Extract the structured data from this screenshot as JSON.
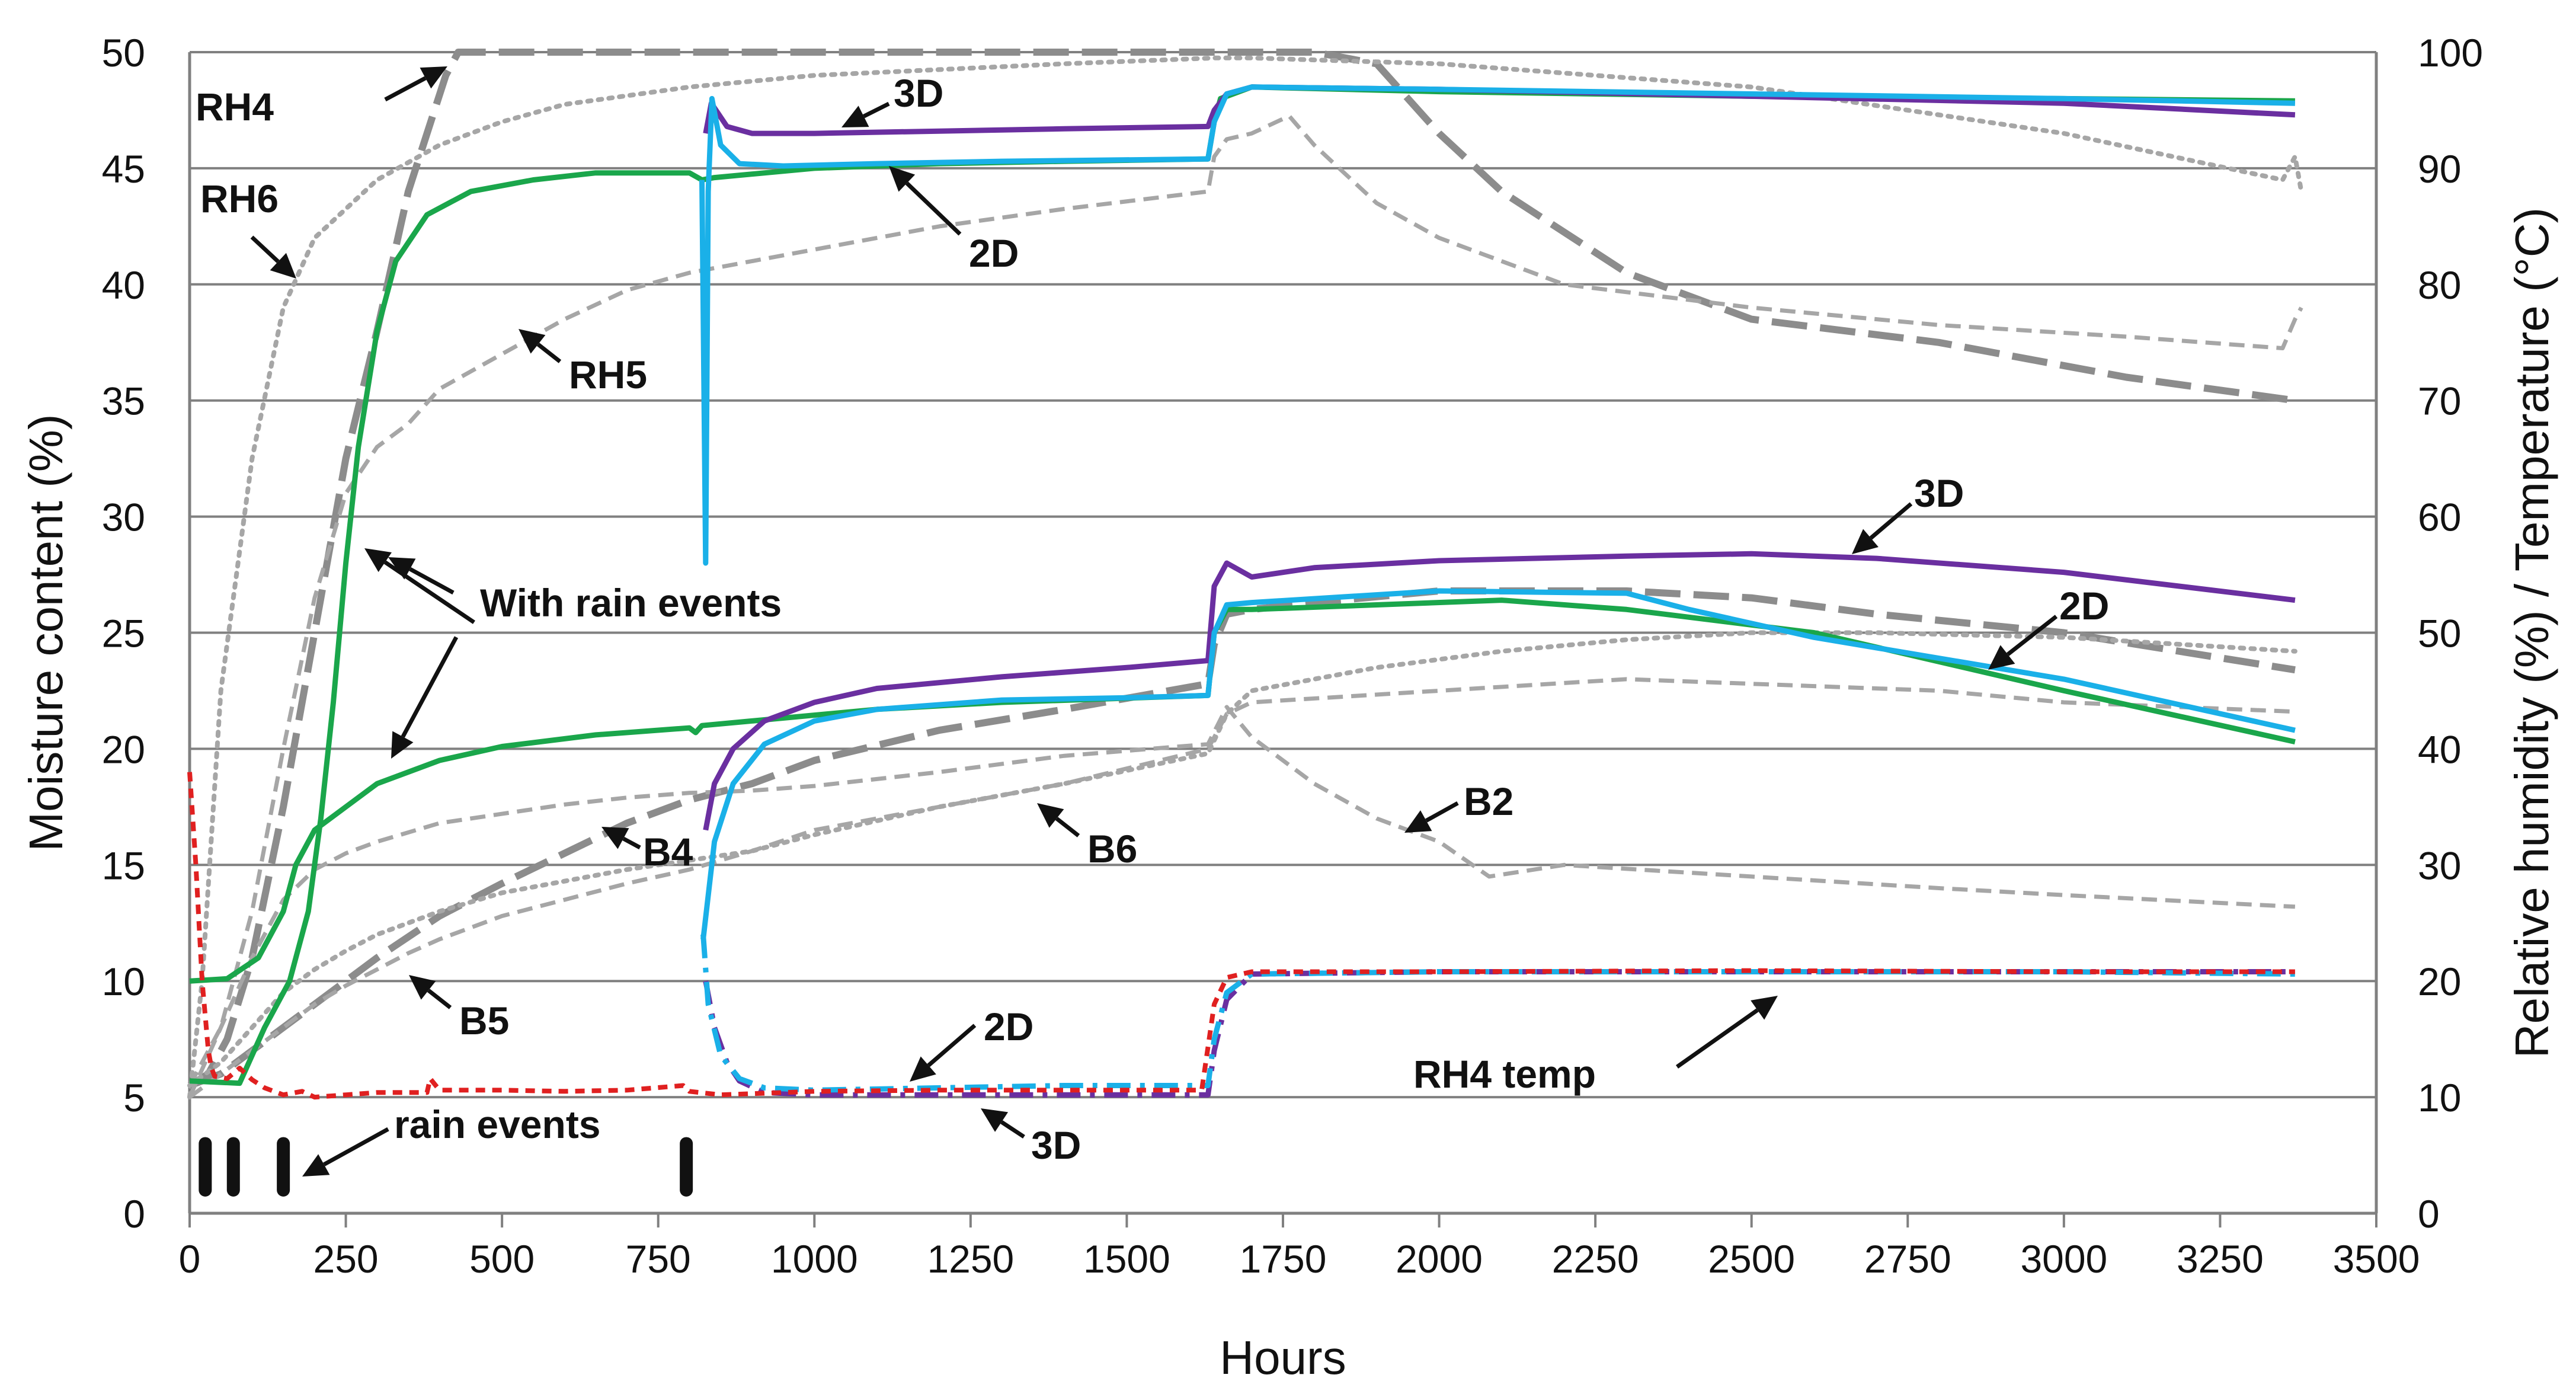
{
  "chart_data": {
    "type": "line",
    "title": "",
    "xlabel": "Hours",
    "ylabel": "Moisture content (%)",
    "y2label": "Relative humidity (%) / Temperature (°C)",
    "xlim": [
      0,
      3500
    ],
    "ylim": [
      0,
      50
    ],
    "y2lim": [
      0,
      100
    ],
    "grid": "horizontal",
    "x_ticks": [
      "0",
      "250",
      "500",
      "750",
      "1000",
      "1250",
      "1500",
      "1750",
      "2000",
      "2250",
      "2500",
      "2750",
      "3000",
      "3250",
      "3500"
    ],
    "y_ticks": [
      "0",
      "5",
      "10",
      "15",
      "20",
      "25",
      "30",
      "35",
      "40",
      "45",
      "50"
    ],
    "y2_ticks": [
      "0",
      "10",
      "20",
      "30",
      "40",
      "50",
      "60",
      "70",
      "80",
      "90",
      "100"
    ],
    "colors": {
      "green": "#1aa64b",
      "purple": "#6a2fa0",
      "blue": "#1ab0e8",
      "grey": "#a6a6a6",
      "dark_grey": "#8c8c8c",
      "red": "#e02020",
      "black": "#111111",
      "grid": "#808080"
    },
    "series": [
      {
        "name": "With rain events (upper)",
        "axis": "left",
        "style": "solid",
        "color": "green",
        "x": [
          0,
          80,
          120,
          160,
          190,
          210,
          230,
          250,
          270,
          300,
          330,
          380,
          450,
          550,
          650,
          800,
          820,
          840,
          1000,
          1200,
          1400,
          1630,
          1640,
          1650,
          1700,
          2000,
          2500,
          3000,
          3370
        ],
        "y": [
          5.7,
          5.6,
          8,
          10,
          13,
          17,
          22,
          28,
          33,
          38,
          41,
          43,
          44,
          44.5,
          44.8,
          44.8,
          44.5,
          44.6,
          45,
          45.2,
          45.3,
          45.4,
          47,
          48,
          48.5,
          48.3,
          48.1,
          48,
          47.9
        ]
      },
      {
        "name": "With rain events (lower)",
        "axis": "left",
        "style": "solid",
        "color": "green",
        "x": [
          0,
          60,
          110,
          150,
          170,
          200,
          250,
          300,
          400,
          500,
          650,
          800,
          810,
          820,
          900,
          1100,
          1300,
          1630,
          1640,
          1660,
          1700,
          1900,
          2100,
          2300,
          2600,
          3000,
          3370
        ],
        "y": [
          10,
          10.1,
          11,
          13,
          15,
          16.5,
          17.5,
          18.5,
          19.5,
          20.1,
          20.6,
          20.9,
          20.7,
          21,
          21.2,
          21.7,
          22,
          22.3,
          25,
          26,
          26,
          26.2,
          26.4,
          26,
          25,
          22.5,
          20.3
        ]
      },
      {
        "name": "3D (upper)",
        "axis": "left",
        "style": "solid",
        "color": "purple",
        "x": [
          826,
          835,
          860,
          900,
          1000,
          1200,
          1400,
          1630,
          1640,
          1660,
          1700,
          2000,
          2500,
          3000,
          3370
        ],
        "y": [
          46.5,
          47.8,
          46.8,
          46.5,
          46.5,
          46.6,
          46.7,
          46.8,
          47.5,
          48.2,
          48.5,
          48.4,
          48.1,
          47.8,
          47.3
        ]
      },
      {
        "name": "2D (upper)",
        "axis": "left",
        "style": "solid",
        "color": "blue",
        "x": [
          820,
          826,
          830,
          836,
          850,
          880,
          950,
          1100,
          1300,
          1630,
          1640,
          1660,
          1700,
          2000,
          2500,
          3000,
          3370
        ],
        "y": [
          44.5,
          28,
          44,
          48,
          46,
          45.2,
          45.1,
          45.2,
          45.3,
          45.4,
          47,
          48.2,
          48.5,
          48.4,
          48.2,
          48,
          47.8
        ]
      },
      {
        "name": "3D (middle)",
        "axis": "left",
        "style": "solid",
        "color": "purple",
        "x": [
          826,
          840,
          870,
          920,
          1000,
          1100,
          1300,
          1500,
          1630,
          1640,
          1660,
          1700,
          1800,
          2000,
          2300,
          2500,
          2700,
          3000,
          3370
        ],
        "y": [
          16.5,
          18.5,
          20,
          21.2,
          22,
          22.6,
          23.1,
          23.5,
          23.8,
          27,
          28,
          27.4,
          27.8,
          28.1,
          28.3,
          28.4,
          28.2,
          27.6,
          26.4
        ]
      },
      {
        "name": "2D (middle)",
        "axis": "left",
        "style": "solid",
        "color": "blue",
        "x": [
          822,
          840,
          870,
          920,
          1000,
          1100,
          1300,
          1500,
          1630,
          1640,
          1660,
          1700,
          2000,
          2300,
          2400,
          2600,
          3000,
          3370
        ],
        "y": [
          11.8,
          16,
          18.5,
          20.2,
          21.2,
          21.7,
          22.1,
          22.2,
          22.3,
          25,
          26.2,
          26.3,
          26.8,
          26.7,
          26,
          24.8,
          23,
          20.8
        ]
      },
      {
        "name": "3D (lower)",
        "axis": "left",
        "style": "dash-dot",
        "color": "purple",
        "x": [
          826,
          840,
          860,
          880,
          920,
          1000,
          1200,
          1400,
          1630,
          1640,
          1660,
          1700,
          2000,
          2500,
          3000,
          3370
        ],
        "y": [
          10,
          8,
          6.5,
          5.7,
          5.2,
          5.1,
          5.1,
          5.1,
          5.1,
          7,
          9.2,
          10.3,
          10.4,
          10.4,
          10.4,
          10.4
        ]
      },
      {
        "name": "2D (lower)",
        "axis": "left",
        "style": "dash-dot",
        "color": "blue",
        "x": [
          822,
          830,
          850,
          880,
          920,
          1000,
          1200,
          1400,
          1630,
          1640,
          1660,
          1700,
          2000,
          2500,
          3000,
          3370
        ],
        "y": [
          12,
          9,
          6.8,
          5.8,
          5.4,
          5.3,
          5.4,
          5.5,
          5.5,
          7.5,
          9.5,
          10.3,
          10.4,
          10.4,
          10.4,
          10.3
        ]
      },
      {
        "name": "RH4 temp",
        "axis": "right",
        "style": "short-dash",
        "color": "red",
        "x": [
          0,
          10,
          20,
          30,
          35,
          40,
          60,
          80,
          100,
          120,
          150,
          180,
          200,
          250,
          300,
          380,
          385,
          400,
          500,
          600,
          700,
          790,
          800,
          850,
          1000,
          1200,
          1400,
          1620,
          1640,
          1660,
          1700,
          2000,
          2500,
          3000,
          3370
        ],
        "y": [
          38,
          30,
          20,
          14,
          12.5,
          11.8,
          11.6,
          12.5,
          11.5,
          10.8,
          10.2,
          10.5,
          10,
          10.2,
          10.4,
          10.4,
          11.6,
          10.6,
          10.6,
          10.5,
          10.6,
          11,
          10.5,
          10.2,
          10.5,
          10.6,
          10.6,
          10.6,
          18,
          20.3,
          20.8,
          20.8,
          20.9,
          20.8,
          20.8
        ]
      },
      {
        "name": "RH4",
        "axis": "right",
        "style": "long-dash",
        "color": "dark_grey",
        "x": [
          0,
          30,
          60,
          100,
          150,
          200,
          250,
          300,
          350,
          380,
          410,
          430,
          500,
          800,
          1000,
          1640,
          1800,
          1900,
          1950,
          2000,
          2100,
          2300,
          2500,
          2800,
          3100,
          3370
        ],
        "y": [
          11,
          12,
          15,
          22,
          35,
          50,
          65,
          76,
          88,
          93,
          98,
          100,
          100,
          100,
          100,
          100,
          100,
          99,
          96,
          93,
          88,
          81,
          77,
          75,
          72,
          70
        ]
      },
      {
        "name": "RH6",
        "axis": "right",
        "style": "dotted",
        "color": "grey",
        "x": [
          0,
          20,
          50,
          100,
          150,
          200,
          300,
          400,
          500,
          600,
          800,
          1000,
          1200,
          1400,
          1640,
          1700,
          2000,
          2500,
          3000,
          3350,
          3370,
          3380
        ],
        "y": [
          10,
          20,
          45,
          65,
          78,
          84,
          89,
          92,
          94,
          95.5,
          97,
          98,
          98.5,
          99,
          99.5,
          99.5,
          99,
          97,
          93,
          89,
          91,
          88
        ]
      },
      {
        "name": "RH5",
        "axis": "right",
        "style": "dashed",
        "color": "grey",
        "x": [
          0,
          50,
          100,
          150,
          200,
          250,
          300,
          350,
          400,
          500,
          600,
          700,
          800,
          1000,
          1200,
          1400,
          1630,
          1640,
          1660,
          1700,
          1760,
          1800,
          1900,
          2000,
          2100,
          2200,
          2500,
          2800,
          3100,
          3350,
          3370,
          3380
        ],
        "y": [
          11,
          16,
          26,
          40,
          53,
          62,
          66,
          68,
          71,
          74,
          77,
          79.5,
          81,
          83,
          85,
          86.5,
          88,
          91,
          92.5,
          93,
          94.5,
          92,
          87,
          84,
          82,
          80,
          78,
          76.5,
          75.5,
          74.5,
          77,
          78
        ]
      },
      {
        "name": "B4",
        "axis": "left",
        "style": "long-dash",
        "color": "dark_grey",
        "x": [
          0,
          50,
          100,
          150,
          200,
          300,
          400,
          500,
          600,
          700,
          800,
          900,
          1000,
          1200,
          1400,
          1630,
          1640,
          1660,
          1700,
          1800,
          2000,
          2300,
          2500,
          2700,
          3000,
          3370
        ],
        "y": [
          5.5,
          6,
          7,
          8,
          9,
          11,
          12.8,
          14.2,
          15.5,
          16.8,
          17.8,
          18.5,
          19.5,
          20.8,
          21.7,
          22.8,
          24.5,
          25.8,
          26,
          26.3,
          26.8,
          26.8,
          26.5,
          25.8,
          25,
          23.4
        ]
      },
      {
        "name": "B5",
        "axis": "left",
        "style": "dashed",
        "color": "grey",
        "x": [
          0,
          50,
          100,
          150,
          200,
          250,
          300,
          350,
          400,
          500,
          600,
          700,
          800,
          900,
          1000,
          1200,
          1400,
          1630,
          1660,
          1700,
          2000,
          2300,
          2500,
          2800,
          3000,
          3370
        ],
        "y": [
          5,
          6,
          7,
          8,
          9,
          9.8,
          10.5,
          11.2,
          11.8,
          12.8,
          13.5,
          14.2,
          14.8,
          15.6,
          16.5,
          17.5,
          18.5,
          20,
          21.5,
          22,
          22.5,
          23,
          22.8,
          22.5,
          22,
          21.6
        ]
      },
      {
        "name": "B6",
        "axis": "left",
        "style": "dotted",
        "color": "grey",
        "x": [
          0,
          50,
          100,
          150,
          200,
          250,
          300,
          400,
          500,
          600,
          700,
          800,
          900,
          1000,
          1200,
          1400,
          1630,
          1660,
          1700,
          1900,
          2100,
          2300,
          2500,
          2700,
          3000,
          3370
        ],
        "y": [
          5.5,
          6.5,
          8,
          9.5,
          10.5,
          11.3,
          12,
          13,
          13.8,
          14.3,
          14.8,
          15.2,
          15.6,
          16.3,
          17.5,
          18.5,
          19.8,
          21.5,
          22.5,
          23.5,
          24.2,
          24.7,
          25,
          25,
          24.8,
          24.2
        ]
      },
      {
        "name": "B2",
        "axis": "left",
        "style": "dashed",
        "color": "grey",
        "x": [
          0,
          50,
          100,
          150,
          200,
          250,
          300,
          400,
          500,
          600,
          700,
          800,
          900,
          1000,
          1200,
          1400,
          1630,
          1660,
          1700,
          1800,
          1900,
          2000,
          2080,
          2200,
          2500,
          2800,
          3000,
          3370
        ],
        "y": [
          5,
          8,
          11,
          13.5,
          14.8,
          15.5,
          16,
          16.8,
          17.2,
          17.6,
          17.9,
          18.1,
          18.2,
          18.4,
          19,
          19.7,
          20.2,
          21.8,
          20.5,
          18.5,
          17,
          16,
          14.5,
          15,
          14.5,
          14,
          13.7,
          13.2
        ]
      }
    ],
    "rain_events": {
      "label": "rain events",
      "hours": [
        25,
        70,
        150,
        795
      ]
    },
    "annotations": [
      {
        "text": "RH4"
      },
      {
        "text": "RH6"
      },
      {
        "text": "RH5"
      },
      {
        "text": "3D"
      },
      {
        "text": "2D"
      },
      {
        "text": "With rain events"
      },
      {
        "text": "3D"
      },
      {
        "text": "2D"
      },
      {
        "text": "B4"
      },
      {
        "text": "B6"
      },
      {
        "text": "B2"
      },
      {
        "text": "B5"
      },
      {
        "text": "2D"
      },
      {
        "text": "RH4 temp"
      },
      {
        "text": "rain events"
      },
      {
        "text": "3D"
      }
    ]
  }
}
